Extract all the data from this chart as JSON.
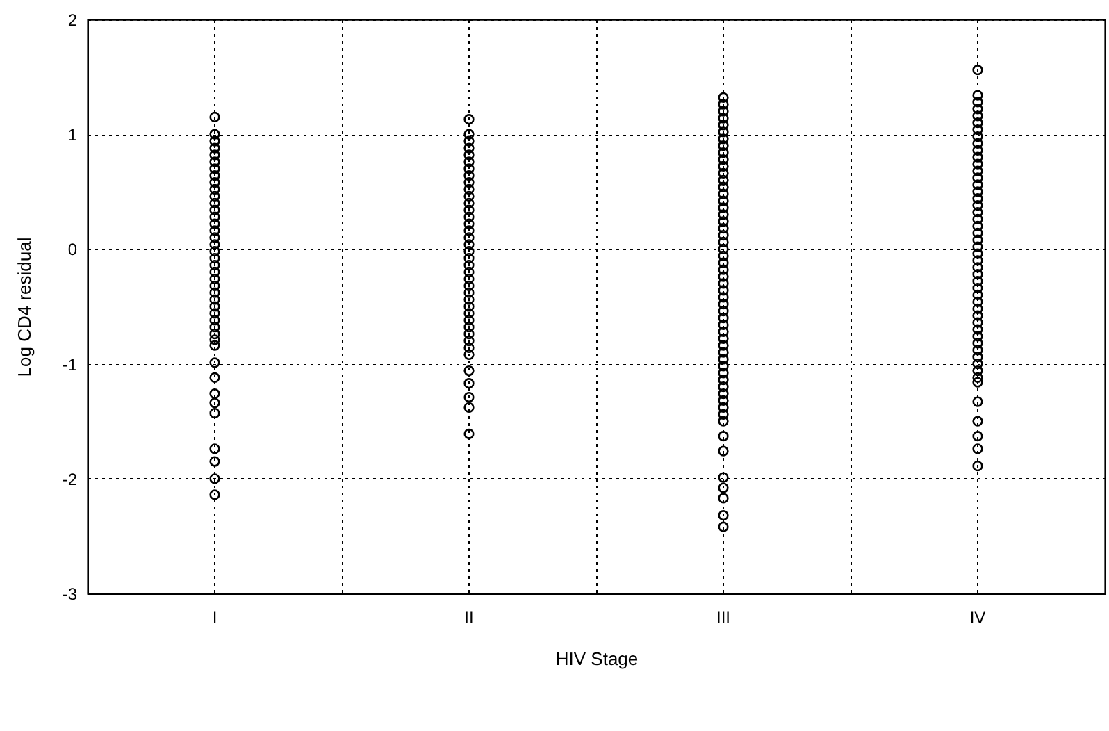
{
  "chart_data": {
    "type": "scatter",
    "xlabel": "HIV Stage",
    "ylabel": "Log CD4 residual",
    "categories": [
      "I",
      "II",
      "III",
      "IV"
    ],
    "ylim": [
      -3,
      2
    ],
    "yticks": [
      -3,
      -2,
      -1,
      0,
      1,
      2
    ],
    "grid": true,
    "marker": "circle",
    "series": [
      {
        "color": "#000000",
        "x": [
          "I",
          "I",
          "I",
          "I",
          "I",
          "I",
          "I",
          "I",
          "I",
          "I",
          "I",
          "I",
          "I",
          "I",
          "I",
          "I",
          "I",
          "I",
          "I",
          "I",
          "I",
          "I",
          "I",
          "I",
          "I",
          "I",
          "I",
          "I",
          "I",
          "I",
          "I",
          "I",
          "I",
          "I",
          "I",
          "I",
          "I",
          "I",
          "I",
          "I",
          "I",
          "I"
        ],
        "values": [
          1.15,
          1.0,
          0.94,
          0.88,
          0.82,
          0.76,
          0.7,
          0.64,
          0.58,
          0.52,
          0.46,
          0.4,
          0.34,
          0.28,
          0.22,
          0.16,
          0.1,
          0.04,
          -0.02,
          -0.08,
          -0.14,
          -0.2,
          -0.26,
          -0.32,
          -0.38,
          -0.44,
          -0.5,
          -0.56,
          -0.62,
          -0.68,
          -0.74,
          -0.79,
          -0.84,
          -0.99,
          -1.12,
          -1.26,
          -1.34,
          -1.43,
          -1.74,
          -1.85,
          -2.0,
          -2.14
        ]
      },
      {
        "color": "#000000",
        "x": [
          "II",
          "II",
          "II",
          "II",
          "II",
          "II",
          "II",
          "II",
          "II",
          "II",
          "II",
          "II",
          "II",
          "II",
          "II",
          "II",
          "II",
          "II",
          "II",
          "II",
          "II",
          "II",
          "II",
          "II",
          "II",
          "II",
          "II",
          "II",
          "II",
          "II",
          "II",
          "II",
          "II",
          "II",
          "II",
          "II",
          "II",
          "II",
          "II"
        ],
        "values": [
          1.13,
          1.0,
          0.94,
          0.88,
          0.82,
          0.76,
          0.7,
          0.64,
          0.58,
          0.52,
          0.46,
          0.4,
          0.34,
          0.28,
          0.22,
          0.16,
          0.1,
          0.04,
          -0.02,
          -0.08,
          -0.14,
          -0.2,
          -0.26,
          -0.32,
          -0.38,
          -0.44,
          -0.5,
          -0.56,
          -0.62,
          -0.68,
          -0.74,
          -0.8,
          -0.86,
          -0.92,
          -1.06,
          -1.17,
          -1.29,
          -1.38,
          -1.61
        ]
      },
      {
        "color": "#000000",
        "x": [
          "III",
          "III",
          "III",
          "III",
          "III",
          "III",
          "III",
          "III",
          "III",
          "III",
          "III",
          "III",
          "III",
          "III",
          "III",
          "III",
          "III",
          "III",
          "III",
          "III",
          "III",
          "III",
          "III",
          "III",
          "III",
          "III",
          "III",
          "III",
          "III",
          "III",
          "III",
          "III",
          "III",
          "III",
          "III",
          "III",
          "III",
          "III",
          "III",
          "III",
          "III",
          "III",
          "III",
          "III",
          "III",
          "III",
          "III",
          "III",
          "III",
          "III",
          "III",
          "III",
          "III",
          "III",
          "III"
        ],
        "values": [
          1.32,
          1.26,
          1.2,
          1.14,
          1.08,
          1.02,
          0.96,
          0.9,
          0.84,
          0.78,
          0.72,
          0.66,
          0.6,
          0.54,
          0.48,
          0.42,
          0.36,
          0.3,
          0.24,
          0.18,
          0.12,
          0.06,
          0,
          -0.06,
          -0.12,
          -0.18,
          -0.24,
          -0.3,
          -0.36,
          -0.42,
          -0.48,
          -0.54,
          -0.6,
          -0.66,
          -0.72,
          -0.78,
          -0.84,
          -0.9,
          -0.96,
          -1.02,
          -1.08,
          -1.14,
          -1.2,
          -1.26,
          -1.32,
          -1.38,
          -1.44,
          -1.5,
          -1.63,
          -1.76,
          -1.99,
          -2.08,
          -2.17,
          -2.32,
          -2.42
        ]
      },
      {
        "color": "#000000",
        "x": [
          "IV",
          "IV",
          "IV",
          "IV",
          "IV",
          "IV",
          "IV",
          "IV",
          "IV",
          "IV",
          "IV",
          "IV",
          "IV",
          "IV",
          "IV",
          "IV",
          "IV",
          "IV",
          "IV",
          "IV",
          "IV",
          "IV",
          "IV",
          "IV",
          "IV",
          "IV",
          "IV",
          "IV",
          "IV",
          "IV",
          "IV",
          "IV",
          "IV",
          "IV",
          "IV",
          "IV",
          "IV",
          "IV",
          "IV",
          "IV",
          "IV",
          "IV",
          "IV",
          "IV",
          "IV",
          "IV",
          "IV",
          "IV",
          "IV"
        ],
        "values": [
          1.56,
          1.34,
          1.28,
          1.22,
          1.16,
          1.1,
          1.04,
          0.98,
          0.92,
          0.86,
          0.8,
          0.74,
          0.68,
          0.62,
          0.56,
          0.5,
          0.44,
          0.38,
          0.32,
          0.26,
          0.2,
          0.14,
          0.08,
          0.02,
          -0.04,
          -0.1,
          -0.16,
          -0.22,
          -0.28,
          -0.34,
          -0.4,
          -0.46,
          -0.52,
          -0.58,
          -0.64,
          -0.7,
          -0.76,
          -0.82,
          -0.88,
          -0.94,
          -1.0,
          -1.06,
          -1.12,
          -1.16,
          -1.33,
          -1.5,
          -1.63,
          -1.74,
          -1.89
        ]
      }
    ]
  }
}
